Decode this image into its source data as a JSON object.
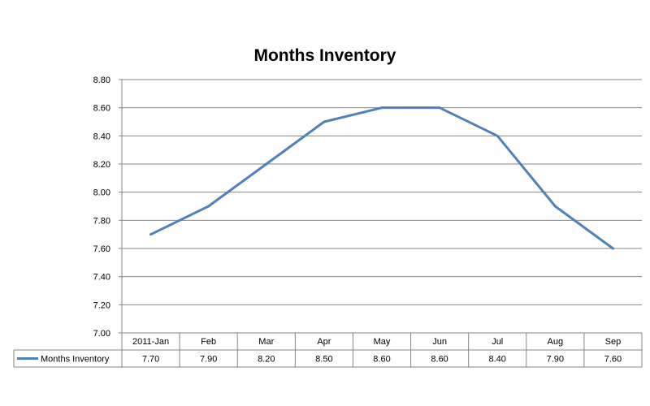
{
  "chart_data": {
    "type": "line",
    "title": "Months Inventory",
    "categories": [
      "2011-Jan",
      "Feb",
      "Mar",
      "Apr",
      "May",
      "Jun",
      "Jul",
      "Aug",
      "Sep"
    ],
    "series": [
      {
        "name": "Months Inventory",
        "values": [
          7.7,
          7.9,
          8.2,
          8.5,
          8.6,
          8.6,
          8.4,
          7.9,
          7.6
        ],
        "value_labels": [
          "7.70",
          "7.90",
          "8.20",
          "8.50",
          "8.60",
          "8.60",
          "8.40",
          "7.90",
          "7.60"
        ],
        "color": "#4F81BD"
      }
    ],
    "ylim": [
      7.0,
      8.8
    ],
    "yticks": [
      "7.00",
      "7.20",
      "7.40",
      "7.60",
      "7.80",
      "8.00",
      "8.20",
      "8.40",
      "8.60",
      "8.80"
    ],
    "grid": true,
    "legend": "data-table-left",
    "xlabel": "",
    "ylabel": ""
  }
}
